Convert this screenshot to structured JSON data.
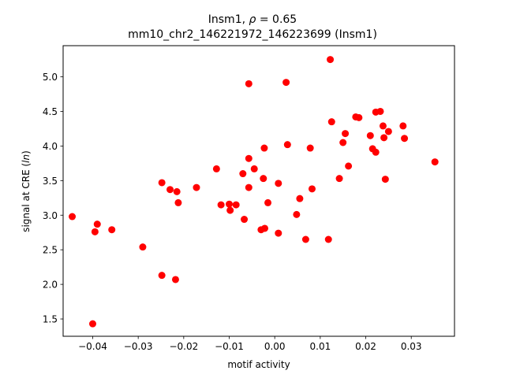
{
  "chart_data": {
    "type": "scatter",
    "title_prefix": "Insm1, ",
    "title_rho_symbol": "ρ",
    "title_rho_value": " = 0.65",
    "subtitle": "mm10_chr2_146221972_146223699 (Insm1)",
    "xlabel": "motif activity",
    "ylabel_prefix": "signal at CRE (",
    "ylabel_italic": "ln",
    "ylabel_suffix": ")",
    "xlim": [
      -0.0465,
      0.0395
    ],
    "ylim": [
      1.25,
      5.45
    ],
    "xticks": [
      -0.04,
      -0.03,
      -0.02,
      -0.01,
      0.0,
      0.01,
      0.02,
      0.03
    ],
    "xtick_labels": [
      "−0.04",
      "−0.03",
      "−0.02",
      "−0.01",
      "0.00",
      "0.01",
      "0.02",
      "0.03"
    ],
    "yticks": [
      1.5,
      2.0,
      2.5,
      3.0,
      3.5,
      4.0,
      4.5,
      5.0
    ],
    "ytick_labels": [
      "1.5",
      "2.0",
      "2.5",
      "3.0",
      "3.5",
      "4.0",
      "4.5",
      "5.0"
    ],
    "grid": false,
    "marker_color": "#ff0000",
    "points": [
      {
        "x": -0.0445,
        "y": 2.98
      },
      {
        "x": -0.04,
        "y": 1.43
      },
      {
        "x": -0.0395,
        "y": 2.76
      },
      {
        "x": -0.039,
        "y": 2.87
      },
      {
        "x": -0.0358,
        "y": 2.79
      },
      {
        "x": -0.029,
        "y": 2.54
      },
      {
        "x": -0.0248,
        "y": 2.13
      },
      {
        "x": -0.0248,
        "y": 3.47
      },
      {
        "x": -0.023,
        "y": 3.37
      },
      {
        "x": -0.0218,
        "y": 2.07
      },
      {
        "x": -0.0215,
        "y": 3.34
      },
      {
        "x": -0.0212,
        "y": 3.18
      },
      {
        "x": -0.0172,
        "y": 3.4
      },
      {
        "x": -0.0128,
        "y": 3.67
      },
      {
        "x": -0.0118,
        "y": 3.15
      },
      {
        "x": -0.01,
        "y": 3.16
      },
      {
        "x": -0.0098,
        "y": 3.07
      },
      {
        "x": -0.0085,
        "y": 3.15
      },
      {
        "x": -0.007,
        "y": 3.6
      },
      {
        "x": -0.0067,
        "y": 2.94
      },
      {
        "x": -0.0057,
        "y": 4.9
      },
      {
        "x": -0.0057,
        "y": 3.82
      },
      {
        "x": -0.0057,
        "y": 3.4
      },
      {
        "x": -0.0045,
        "y": 3.67
      },
      {
        "x": -0.003,
        "y": 2.79
      },
      {
        "x": -0.0025,
        "y": 3.53
      },
      {
        "x": -0.0023,
        "y": 3.97
      },
      {
        "x": -0.0022,
        "y": 2.81
      },
      {
        "x": -0.0015,
        "y": 3.18
      },
      {
        "x": 0.0008,
        "y": 3.46
      },
      {
        "x": 0.0008,
        "y": 2.74
      },
      {
        "x": 0.0025,
        "y": 4.92
      },
      {
        "x": 0.0028,
        "y": 4.02
      },
      {
        "x": 0.0048,
        "y": 3.01
      },
      {
        "x": 0.0055,
        "y": 3.24
      },
      {
        "x": 0.0068,
        "y": 2.65
      },
      {
        "x": 0.0078,
        "y": 3.97
      },
      {
        "x": 0.0082,
        "y": 3.38
      },
      {
        "x": 0.0118,
        "y": 2.65
      },
      {
        "x": 0.0122,
        "y": 5.25
      },
      {
        "x": 0.0125,
        "y": 4.35
      },
      {
        "x": 0.0142,
        "y": 3.53
      },
      {
        "x": 0.015,
        "y": 4.05
      },
      {
        "x": 0.0155,
        "y": 4.18
      },
      {
        "x": 0.0162,
        "y": 3.71
      },
      {
        "x": 0.0178,
        "y": 4.42
      },
      {
        "x": 0.0185,
        "y": 4.41
      },
      {
        "x": 0.021,
        "y": 4.15
      },
      {
        "x": 0.0215,
        "y": 3.96
      },
      {
        "x": 0.0222,
        "y": 4.49
      },
      {
        "x": 0.0222,
        "y": 3.91
      },
      {
        "x": 0.0232,
        "y": 4.5
      },
      {
        "x": 0.0238,
        "y": 4.29
      },
      {
        "x": 0.024,
        "y": 4.12
      },
      {
        "x": 0.0243,
        "y": 3.52
      },
      {
        "x": 0.025,
        "y": 4.21
      },
      {
        "x": 0.0282,
        "y": 4.29
      },
      {
        "x": 0.0285,
        "y": 4.11
      },
      {
        "x": 0.0352,
        "y": 3.77
      }
    ]
  }
}
